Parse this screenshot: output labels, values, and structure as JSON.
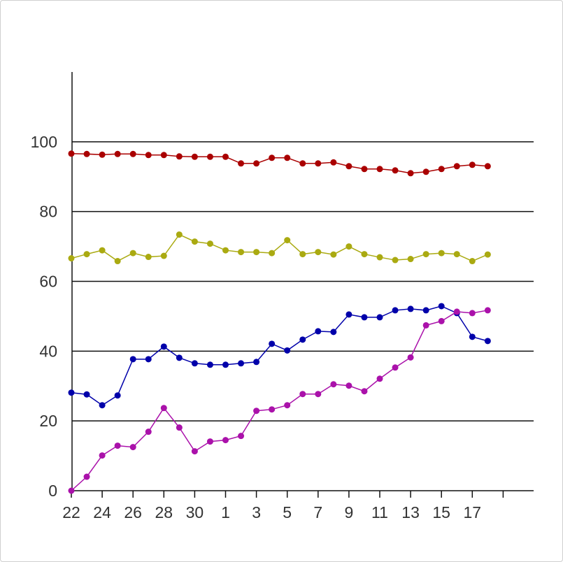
{
  "chart_data": {
    "type": "line",
    "x": [
      "22",
      "23",
      "24",
      "25",
      "26",
      "27",
      "28",
      "29",
      "30",
      "31",
      "1",
      "2",
      "3",
      "4",
      "5",
      "6",
      "7",
      "8",
      "9",
      "10",
      "11",
      "12",
      "13",
      "14",
      "15",
      "16",
      "17",
      "18"
    ],
    "xticks": [
      "22",
      "24",
      "26",
      "28",
      "30",
      "1",
      "3",
      "5",
      "7",
      "9",
      "11",
      "13",
      "15",
      "17"
    ],
    "yticks": [
      0,
      20,
      40,
      60,
      80,
      100
    ],
    "ylim": [
      0,
      120
    ],
    "grid": true,
    "series": [
      {
        "color": "#aa0000",
        "values": [
          96.6,
          96.5,
          96.3,
          96.5,
          96.5,
          96.2,
          96.2,
          95.8,
          95.7,
          95.7,
          95.7,
          93.8,
          93.8,
          95.4,
          95.4,
          93.8,
          93.8,
          94.1,
          93.0,
          92.2,
          92.2,
          91.8,
          91.0,
          91.4,
          92.2,
          93.0,
          93.4,
          93.0
        ]
      },
      {
        "color": "#aaaa11",
        "values": [
          66.6,
          67.8,
          68.9,
          65.8,
          68.1,
          67.0,
          67.3,
          73.4,
          71.4,
          70.8,
          68.9,
          68.4,
          68.4,
          68.1,
          71.8,
          67.8,
          68.4,
          67.7,
          70.0,
          67.8,
          66.9,
          66.1,
          66.4,
          67.8,
          68.1,
          67.8,
          65.8,
          67.7
        ]
      },
      {
        "color": "#0000aa",
        "values": [
          28.1,
          27.6,
          24.5,
          27.3,
          37.7,
          37.7,
          41.3,
          38.1,
          36.5,
          36.1,
          36.1,
          36.5,
          36.9,
          42.1,
          40.2,
          43.3,
          45.7,
          45.5,
          50.5,
          49.7,
          49.7,
          51.7,
          52.1,
          51.7,
          52.9,
          50.9,
          44.1,
          42.9
        ]
      },
      {
        "color": "#aa11aa",
        "values": [
          0.0,
          4.0,
          10.1,
          12.9,
          12.5,
          16.9,
          23.7,
          18.1,
          11.3,
          14.1,
          14.5,
          15.7,
          22.9,
          23.3,
          24.5,
          27.7,
          27.7,
          30.5,
          30.1,
          28.5,
          32.1,
          35.3,
          38.2,
          47.4,
          48.6,
          51.3,
          50.9,
          51.7
        ]
      }
    ]
  }
}
